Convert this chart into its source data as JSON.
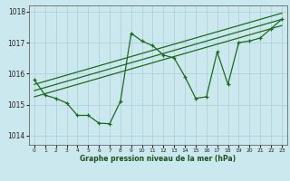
{
  "title": "Graphe pression niveau de la mer (hPa)",
  "xlabel_ticks": [
    0,
    1,
    2,
    3,
    4,
    5,
    6,
    7,
    8,
    9,
    10,
    11,
    12,
    13,
    14,
    15,
    16,
    17,
    18,
    19,
    20,
    21,
    22,
    23
  ],
  "yticks": [
    1014,
    1015,
    1016,
    1017,
    1018
  ],
  "ylim": [
    1013.7,
    1018.2
  ],
  "xlim": [
    -0.5,
    23.5
  ],
  "bg_color": "#cce8ef",
  "grid_color": "#aacdd6",
  "line_color": "#1a6b1a",
  "series_main": {
    "x": [
      0,
      1,
      2,
      3,
      4,
      5,
      6,
      7,
      8,
      9,
      10,
      11,
      12,
      13,
      14,
      15,
      16,
      17,
      18,
      19,
      20,
      21,
      22,
      23
    ],
    "y": [
      1015.8,
      1015.3,
      1015.2,
      1015.05,
      1014.65,
      1014.65,
      1014.4,
      1014.38,
      1015.1,
      1017.3,
      1017.05,
      1016.9,
      1016.6,
      1016.5,
      1015.9,
      1015.2,
      1015.25,
      1016.7,
      1015.65,
      1017.0,
      1017.05,
      1017.15,
      1017.45,
      1017.75
    ]
  },
  "series_trend1": {
    "x": [
      0,
      23
    ],
    "y": [
      1015.65,
      1017.95
    ]
  },
  "series_trend2": {
    "x": [
      0,
      23
    ],
    "y": [
      1015.45,
      1017.75
    ]
  },
  "series_trend3": {
    "x": [
      0,
      23
    ],
    "y": [
      1015.25,
      1017.55
    ]
  }
}
